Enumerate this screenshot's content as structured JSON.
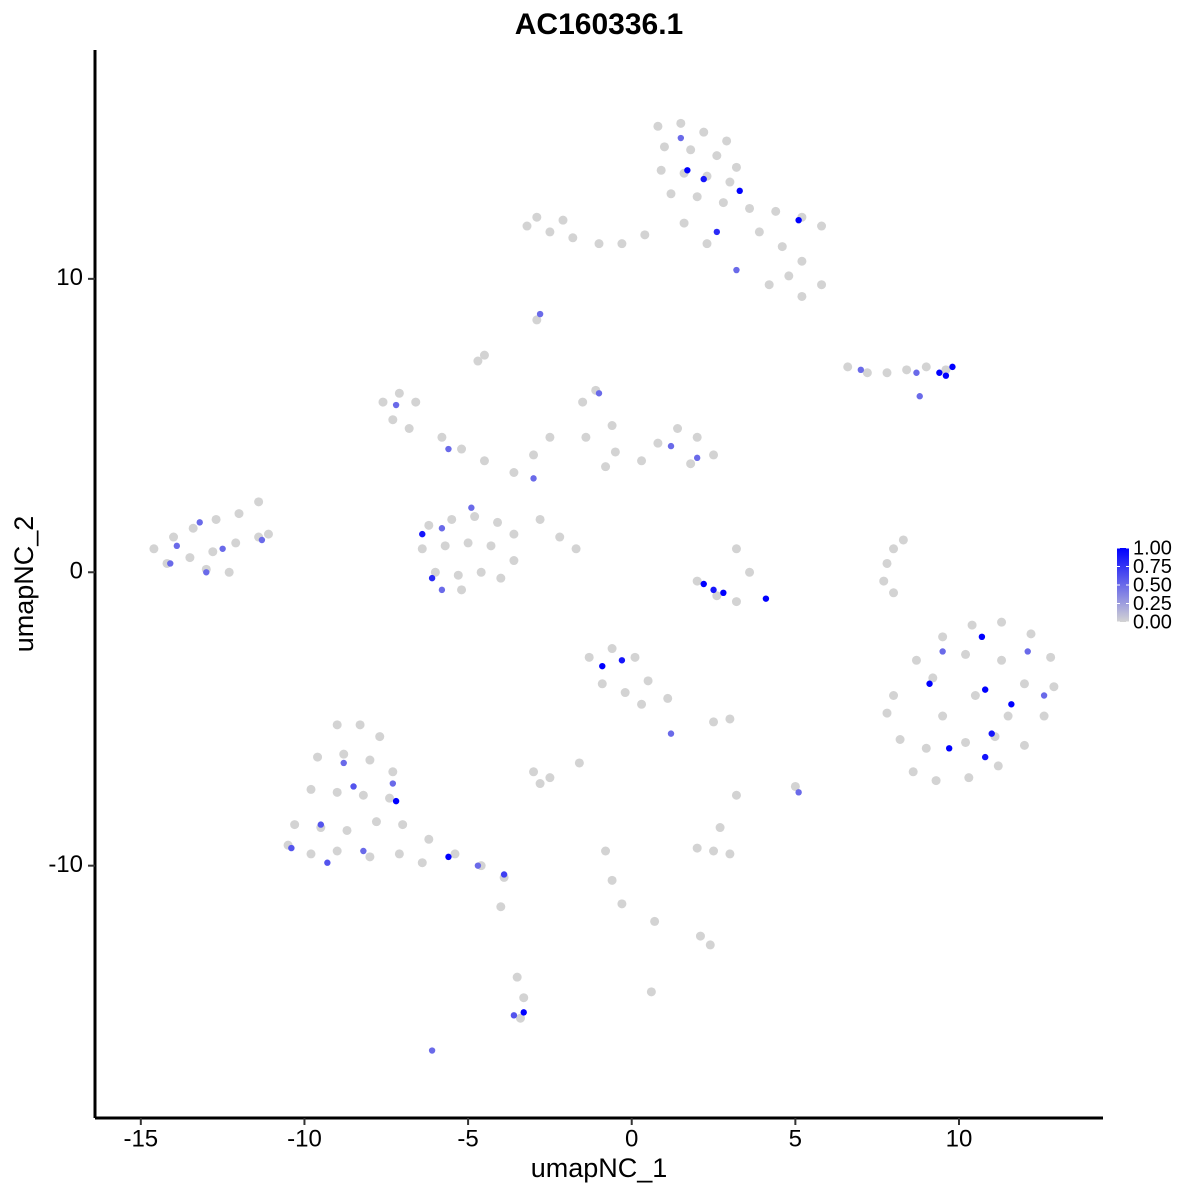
{
  "chart_data": {
    "type": "scatter",
    "title": "AC160336.1",
    "x_label": "umapNC_1",
    "y_label": "umapNC_2",
    "xlim": [
      -16.4,
      14.4
    ],
    "ylim": [
      -18.6,
      17.8
    ],
    "xticks": [
      -15,
      -10,
      -5,
      0,
      5,
      10
    ],
    "yticks": [
      -10,
      0,
      10
    ],
    "grid": false,
    "low_color": "#d3d3d3",
    "high_color": "#0000ff",
    "colorbar": {
      "lim": [
        0,
        1
      ],
      "ticks": [
        {
          "value": 0,
          "label": "0.00"
        },
        {
          "value": 0.25,
          "label": "0.25"
        },
        {
          "value": 0.5,
          "label": "0.50"
        },
        {
          "value": 0.75,
          "label": "0.75"
        },
        {
          "value": 1,
          "label": "1.00"
        }
      ]
    },
    "x": [
      0.8,
      1.5,
      2.2,
      2.9,
      1.0,
      1.8,
      2.6,
      3.2,
      0.9,
      1.6,
      2.3,
      3.0,
      1.2,
      2.0,
      2.8,
      3.6,
      4.4,
      5.2,
      5.8,
      3.9,
      4.6,
      5.2,
      5.8,
      5.2,
      4.8,
      4.2,
      1.6,
      2.3,
      0.4,
      1.7,
      2.2,
      3.3,
      5.1,
      2.6,
      1.5,
      3.2,
      -3.2,
      -2.5,
      -1.8,
      -1.0,
      -0.3,
      -2.9,
      -2.1,
      -2.8,
      -2.9,
      -4.5,
      -4.7,
      6.6,
      7.2,
      7.8,
      8.4,
      9.0,
      9.6,
      7.0,
      8.7,
      9.4,
      9.8,
      9.6,
      8.8,
      -7.6,
      -7.1,
      -6.6,
      -7.3,
      -6.8,
      -7.2,
      -5.8,
      -5.2,
      -4.5,
      -3.6,
      -3.0,
      -2.5,
      -1.5,
      -1.1,
      -0.6,
      -1.4,
      -0.5,
      0.3,
      0.8,
      1.4,
      2.0,
      2.5,
      1.8,
      -0.8,
      -1.0,
      -5.6,
      2.0,
      1.2,
      -3.0,
      -2.8,
      -2.2,
      -1.7,
      -6.2,
      -5.5,
      -4.8,
      -4.1,
      -3.6,
      -6.4,
      -5.7,
      -5.0,
      -4.3,
      -3.6,
      -6.0,
      -5.3,
      -4.6,
      -4.0,
      -5.2,
      -6.1,
      -6.4,
      -4.9,
      -5.8,
      -5.8,
      -14.6,
      -14.0,
      -13.4,
      -12.7,
      -12.0,
      -11.4,
      -14.2,
      -13.5,
      -12.8,
      -12.1,
      -11.4,
      -13.0,
      -12.3,
      -11.1,
      -13.9,
      -12.5,
      -13.2,
      -11.3,
      -14.1,
      -13.0,
      2.0,
      2.6,
      3.2,
      3.6,
      3.2,
      2.2,
      2.8,
      4.1,
      2.5,
      7.8,
      8.0,
      8.3,
      7.7,
      8.0,
      8.0,
      8.7,
      9.5,
      10.4,
      11.3,
      12.2,
      12.8,
      12.9,
      12.6,
      12.0,
      11.2,
      10.3,
      9.3,
      8.6,
      8.2,
      7.8,
      9.2,
      10.2,
      11.3,
      12.0,
      9.5,
      10.5,
      11.5,
      9.0,
      10.2,
      11.1,
      10.7,
      9.7,
      10.8,
      11.6,
      9.1,
      10.8,
      11.0,
      12.6,
      9.5,
      12.1,
      -1.3,
      -0.6,
      0.1,
      0.5,
      1.1,
      -0.9,
      -0.2,
      0.3,
      -0.9,
      -0.3,
      1.2,
      -3.0,
      -2.5,
      -2.8,
      -1.6,
      2.5,
      3.0,
      5.0,
      5.1,
      3.2,
      2.0,
      2.5,
      3.0,
      2.7,
      -0.8,
      -0.6,
      -0.3,
      0.7,
      2.1,
      2.4,
      0.6,
      -3.5,
      -3.3,
      -3.4,
      -3.6,
      -3.3,
      -6.1,
      -9.0,
      -8.3,
      -7.7,
      -9.6,
      -8.8,
      -8.0,
      -7.3,
      -9.8,
      -9.0,
      -8.2,
      -7.4,
      -10.3,
      -9.5,
      -8.7,
      -7.8,
      -7.0,
      -6.2,
      -5.4,
      -4.6,
      -3.9,
      -10.5,
      -9.8,
      -9.0,
      -8.0,
      -7.1,
      -6.4,
      -4.0,
      -7.2,
      -5.6,
      -3.9,
      -9.5,
      -8.5,
      -10.4,
      -9.3,
      -7.3,
      -8.8,
      -4.7,
      -8.2
    ],
    "y": [
      15.2,
      15.3,
      15.0,
      14.7,
      14.5,
      14.4,
      14.2,
      13.8,
      13.7,
      13.6,
      13.5,
      13.3,
      12.9,
      12.8,
      12.6,
      12.4,
      12.3,
      12.1,
      11.8,
      11.6,
      11.1,
      10.6,
      9.8,
      9.4,
      10.1,
      9.8,
      11.9,
      11.2,
      11.5,
      13.7,
      13.4,
      13.0,
      12.0,
      11.6,
      14.8,
      10.3,
      11.8,
      11.6,
      11.4,
      11.2,
      11.2,
      12.1,
      12.0,
      8.8,
      8.6,
      7.4,
      7.2,
      7.0,
      6.8,
      6.8,
      6.9,
      7.0,
      6.9,
      6.9,
      6.8,
      6.8,
      7.0,
      6.7,
      6.0,
      5.8,
      6.1,
      5.8,
      5.2,
      4.9,
      5.7,
      4.6,
      4.2,
      3.8,
      3.4,
      4.0,
      4.6,
      5.8,
      6.2,
      5.0,
      4.6,
      4.1,
      3.8,
      4.4,
      4.9,
      4.6,
      4.0,
      3.7,
      3.6,
      6.1,
      4.2,
      3.9,
      4.3,
      3.2,
      1.8,
      1.2,
      0.8,
      1.6,
      1.8,
      1.9,
      1.7,
      1.3,
      0.8,
      0.9,
      1.0,
      0.9,
      0.4,
      0.0,
      -0.1,
      0.0,
      -0.2,
      -0.6,
      -0.2,
      1.3,
      2.2,
      1.5,
      -0.6,
      0.8,
      1.2,
      1.5,
      1.8,
      2.0,
      2.4,
      0.3,
      0.5,
      0.7,
      1.0,
      1.2,
      0.1,
      0.0,
      1.3,
      0.9,
      0.8,
      1.7,
      1.1,
      0.3,
      0.0,
      -0.3,
      -0.8,
      -1.0,
      0.0,
      0.8,
      -0.4,
      -0.7,
      -0.9,
      -0.6,
      0.3,
      0.8,
      1.1,
      -0.3,
      -0.7,
      -4.2,
      -3.0,
      -2.2,
      -1.8,
      -1.7,
      -2.1,
      -2.9,
      -3.9,
      -4.9,
      -5.9,
      -6.6,
      -7.0,
      -7.1,
      -6.8,
      -5.7,
      -4.8,
      -3.6,
      -2.8,
      -3.0,
      -3.8,
      -4.9,
      -4.2,
      -4.9,
      -6.0,
      -5.8,
      -5.6,
      -2.2,
      -6.0,
      -4.0,
      -4.5,
      -3.8,
      -6.3,
      -5.5,
      -4.2,
      -2.7,
      -2.7,
      -2.9,
      -2.6,
      -2.9,
      -3.7,
      -4.3,
      -3.8,
      -4.1,
      -4.5,
      -3.2,
      -3.0,
      -5.5,
      -6.8,
      -7.0,
      -7.2,
      -6.5,
      -5.1,
      -5.0,
      -7.3,
      -7.5,
      -7.6,
      -9.4,
      -9.5,
      -9.6,
      -8.7,
      -9.5,
      -10.5,
      -11.3,
      -11.9,
      -12.4,
      -12.7,
      -14.3,
      -13.8,
      -14.5,
      -15.2,
      -15.1,
      -15.0,
      -16.3,
      -5.2,
      -5.2,
      -5.6,
      -6.3,
      -6.2,
      -6.4,
      -6.8,
      -7.4,
      -7.5,
      -7.6,
      -7.7,
      -8.6,
      -8.7,
      -8.8,
      -8.5,
      -8.6,
      -9.1,
      -9.6,
      -10.0,
      -10.4,
      -9.3,
      -9.6,
      -9.5,
      -9.7,
      -9.6,
      -9.9,
      -11.4,
      -7.8,
      -9.7,
      -10.3,
      -8.6,
      -7.3,
      -9.4,
      -9.9,
      -7.2,
      -6.5,
      -10.0,
      -9.5
    ],
    "values": [
      0,
      0,
      0,
      0,
      0,
      0,
      0,
      0,
      0,
      0,
      0,
      0,
      0,
      0,
      0,
      0,
      0,
      0,
      0,
      0,
      0,
      0,
      0,
      0,
      0,
      0,
      0,
      0,
      0,
      1,
      0.9,
      1,
      1,
      0.8,
      0.5,
      0.5,
      0,
      0,
      0,
      0,
      0,
      0,
      0,
      0.5,
      0,
      0,
      0,
      0,
      0,
      0,
      0,
      0,
      0,
      0.5,
      0.5,
      1,
      1,
      1,
      0.5,
      0,
      0,
      0,
      0,
      0,
      0.5,
      0,
      0,
      0,
      0,
      0,
      0,
      0,
      0,
      0,
      0,
      0,
      0,
      0,
      0,
      0,
      0,
      0,
      0,
      0.5,
      0.5,
      0.5,
      0.5,
      0.5,
      0,
      0,
      0,
      0,
      0,
      0,
      0,
      0,
      0,
      0,
      0,
      0,
      0,
      0,
      0,
      0,
      0,
      0,
      0.8,
      0.9,
      0.5,
      0.5,
      0.5,
      0,
      0,
      0,
      0,
      0,
      0,
      0,
      0,
      0,
      0,
      0,
      0,
      0,
      0,
      0.5,
      0.5,
      0.5,
      0.5,
      0.5,
      0.5,
      0,
      0,
      0,
      0,
      0,
      1,
      1,
      1,
      0.9,
      0,
      0,
      0,
      0,
      0,
      0,
      0,
      0,
      0,
      0,
      0,
      0,
      0,
      0,
      0,
      0,
      0,
      0,
      0,
      0,
      0,
      0,
      0,
      0,
      0,
      0,
      0,
      0,
      0,
      0,
      0,
      1,
      1,
      1,
      1,
      1,
      0.9,
      0.9,
      0.5,
      0.5,
      0.5,
      0,
      0,
      0,
      0,
      0,
      0,
      0,
      0,
      1,
      0.9,
      0.5,
      0,
      0,
      0,
      0,
      0,
      0,
      0,
      0.5,
      0,
      0,
      0,
      0,
      0,
      0,
      0,
      0,
      0,
      0,
      0,
      0,
      0,
      0,
      0,
      0.6,
      1,
      0.5,
      0,
      0,
      0,
      0,
      0,
      0,
      0,
      0,
      0,
      0,
      0,
      0,
      0,
      0,
      0,
      0,
      0,
      0,
      0,
      0,
      0,
      0,
      0,
      0,
      0,
      0,
      0,
      1,
      1,
      0.7,
      0.6,
      0.6,
      0.6,
      0.6,
      0.5,
      0.5,
      0.5,
      0.5
    ]
  }
}
